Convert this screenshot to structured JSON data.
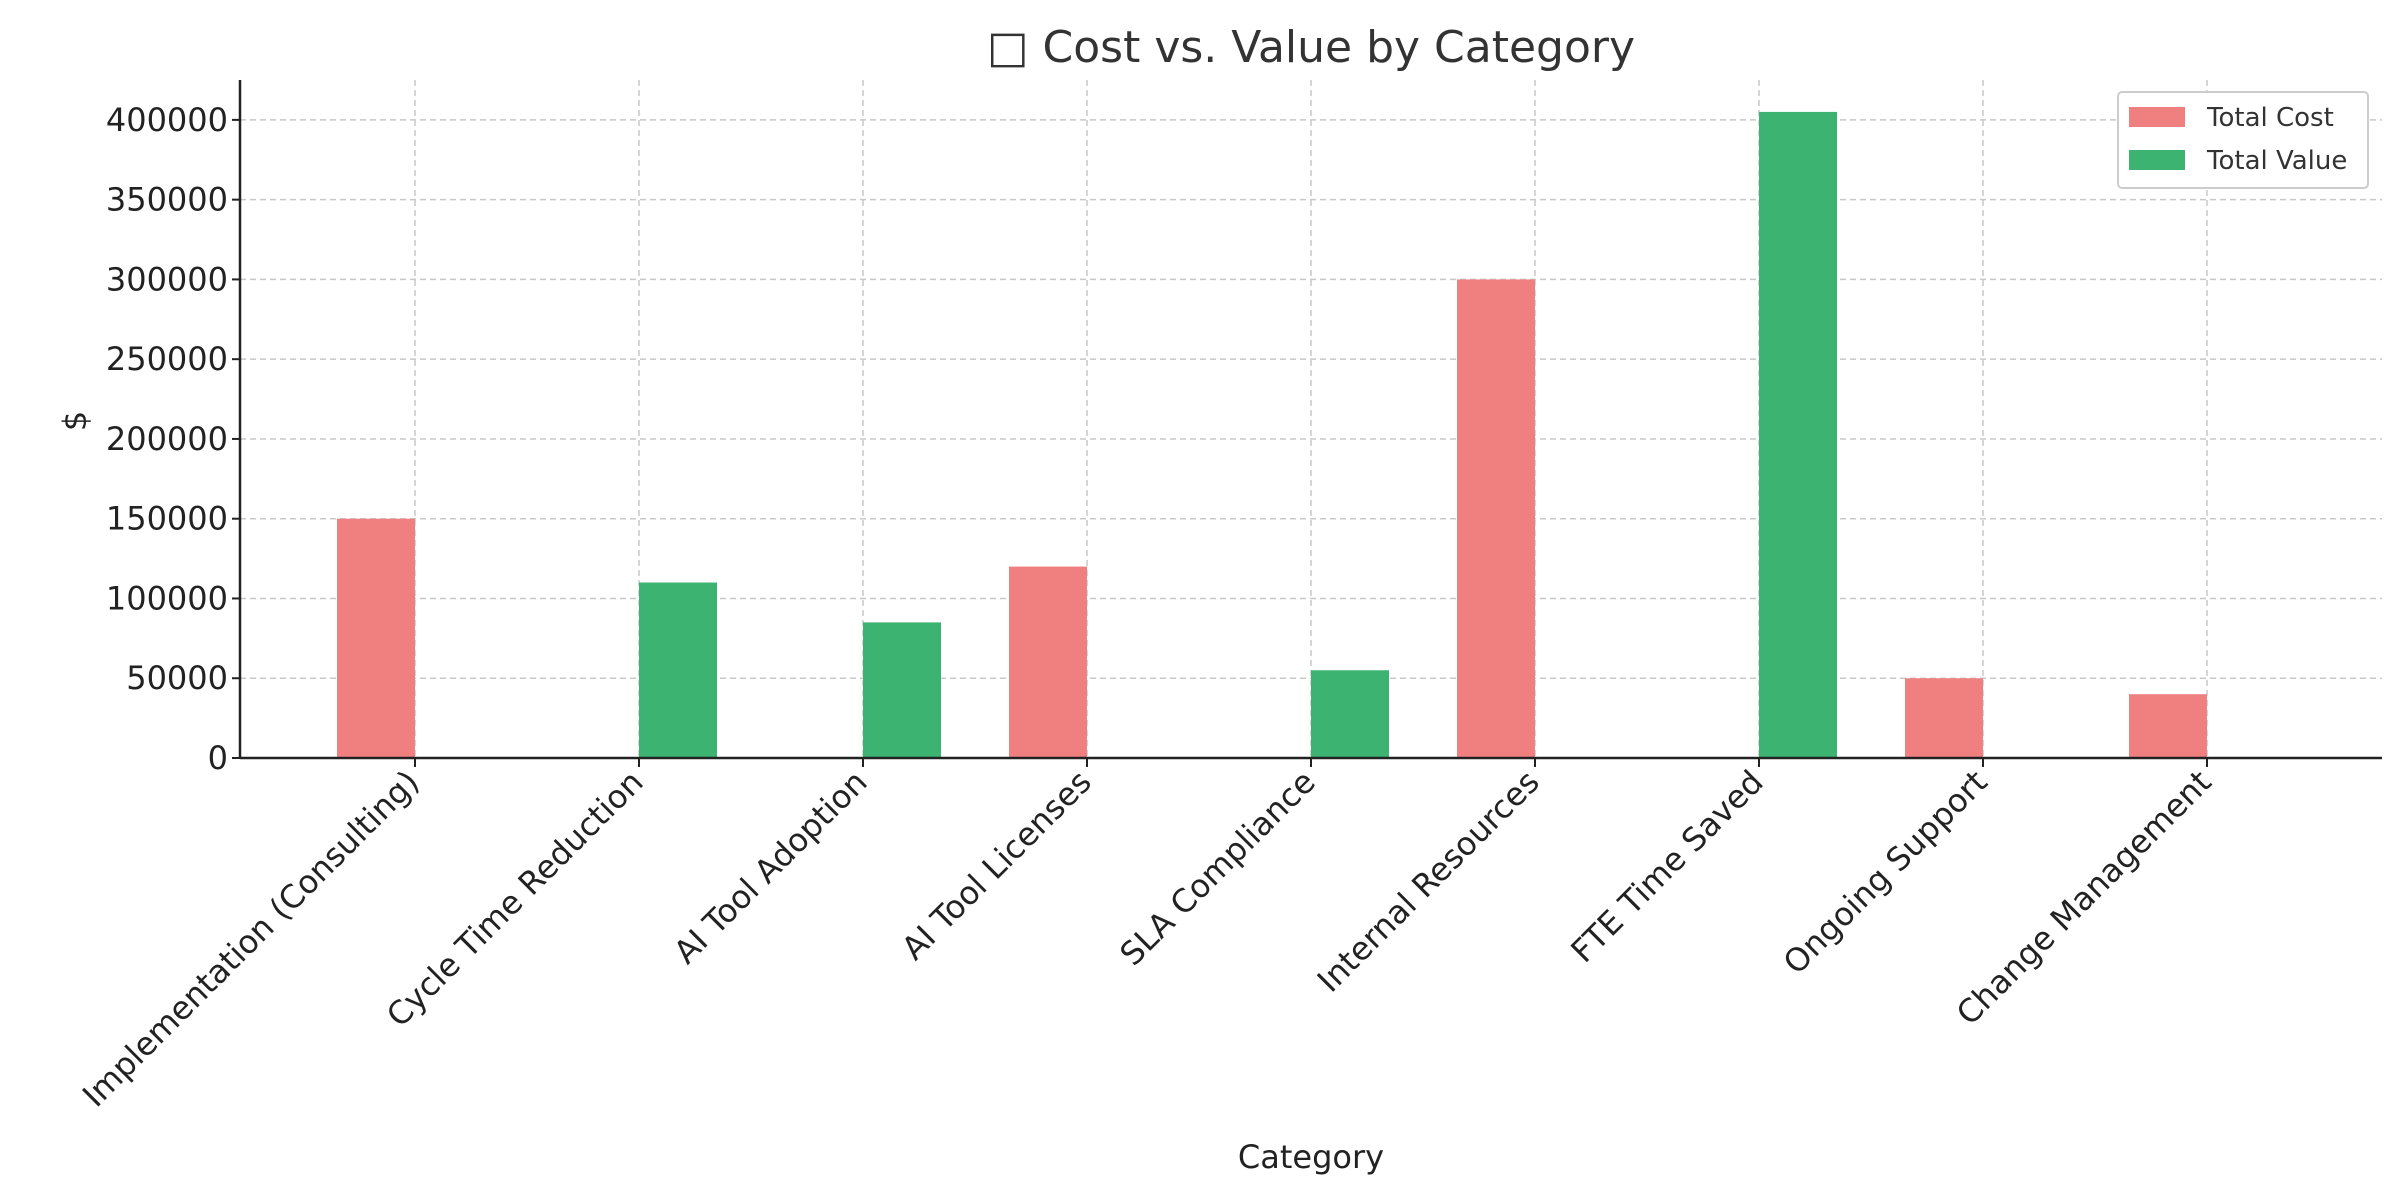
{
  "chart_data": {
    "type": "bar",
    "title": "□ Cost vs. Value by Category",
    "xlabel": "Category",
    "ylabel": "$",
    "ylim": [
      0,
      425000
    ],
    "y_ticks": [
      0,
      50000,
      100000,
      150000,
      200000,
      250000,
      300000,
      350000,
      400000
    ],
    "grid": true,
    "legend_position": "top-right",
    "categories": [
      "Implementation (Consulting)",
      "Cycle Time Reduction",
      "AI Tool Adoption",
      "AI Tool Licenses",
      "SLA Compliance",
      "Internal Resources",
      "FTE Time Saved",
      "Ongoing Support",
      "Change Management"
    ],
    "series": [
      {
        "name": "Total Cost",
        "color": "#f08080",
        "values": [
          150000,
          0,
          0,
          120000,
          0,
          300000,
          0,
          50000,
          40000
        ]
      },
      {
        "name": "Total Value",
        "color": "#3cb371",
        "values": [
          0,
          110000,
          85000,
          0,
          55000,
          0,
          405000,
          0,
          0
        ]
      }
    ]
  }
}
